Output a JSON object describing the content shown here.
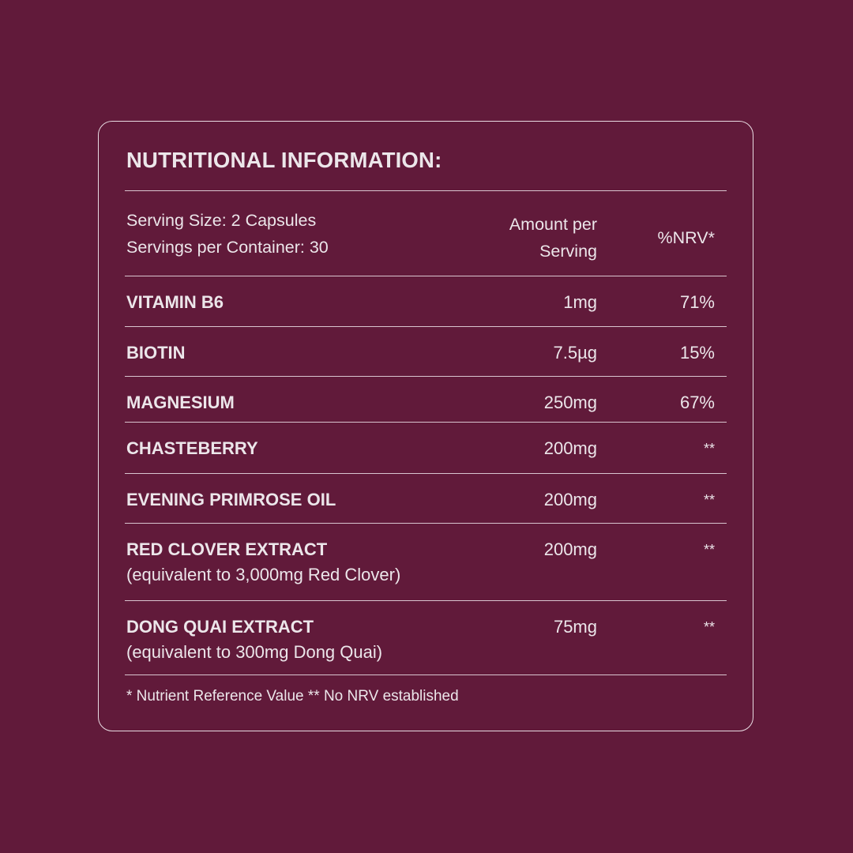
{
  "title": "NUTRITIONAL INFORMATION:",
  "header": {
    "serving_size": "Serving Size: 2 Capsules",
    "servings_per_container": "Servings per Container: 30",
    "amount_line1": "Amount per",
    "amount_line2": "Serving",
    "nrv": "%NRV*"
  },
  "rows": [
    {
      "name": "VITAMIN B6",
      "note": "",
      "amount": "1mg",
      "nrv": "71%"
    },
    {
      "name": "BIOTIN",
      "note": "",
      "amount": "7.5µg",
      "nrv": "15%"
    },
    {
      "name": "MAGNESIUM",
      "note": "",
      "amount": "250mg",
      "nrv": "67%"
    },
    {
      "name": "CHASTEBERRY",
      "note": "",
      "amount": "200mg",
      "nrv": "**"
    },
    {
      "name": "EVENING PRIMROSE OIL",
      "note": "",
      "amount": "200mg",
      "nrv": "**"
    },
    {
      "name": "RED CLOVER EXTRACT",
      "note": "(equivalent to 3,000mg Red Clover)",
      "amount": "200mg",
      "nrv": "**"
    },
    {
      "name": "DONG QUAI EXTRACT",
      "note": "(equivalent to 300mg Dong Quai)",
      "amount": "75mg",
      "nrv": "**"
    }
  ],
  "footnote": "* Nutrient Reference Value  ** No NRV established",
  "colors": {
    "background": "#611a3a",
    "text": "#ece6ea",
    "border": "#e8dbe2"
  }
}
